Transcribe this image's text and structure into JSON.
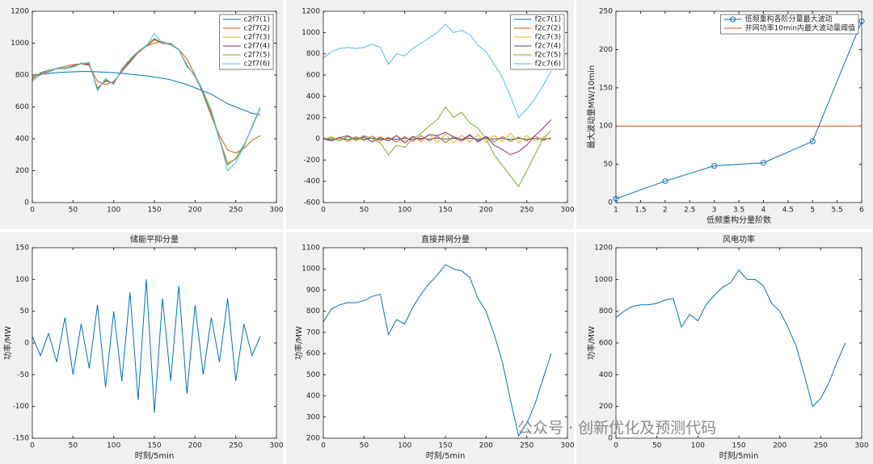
{
  "chart_data": [
    {
      "type": "line",
      "xlim": [
        0,
        300
      ],
      "ylim": [
        0,
        1200
      ],
      "xticks": [
        0,
        50,
        100,
        150,
        200,
        250,
        300
      ],
      "yticks": [
        0,
        200,
        400,
        600,
        800,
        1000,
        1200
      ],
      "legend": "northeast",
      "x": [
        0,
        10,
        20,
        30,
        40,
        50,
        60,
        70,
        80,
        90,
        100,
        110,
        120,
        130,
        140,
        150,
        160,
        170,
        180,
        190,
        200,
        210,
        220,
        230,
        240,
        250,
        260,
        270,
        280
      ],
      "series": [
        {
          "name": "c2f7(1)",
          "color": "#0072BD",
          "values": [
            800,
            805,
            810,
            815,
            818,
            820,
            822,
            822,
            820,
            818,
            815,
            810,
            805,
            800,
            795,
            788,
            780,
            770,
            755,
            740,
            720,
            700,
            680,
            650,
            620,
            600,
            580,
            560,
            550
          ]
        },
        {
          "name": "c2f7(2)",
          "color": "#D95319",
          "values": [
            790,
            800,
            820,
            840,
            855,
            865,
            870,
            860,
            760,
            740,
            760,
            820,
            880,
            940,
            980,
            1000,
            1010,
            990,
            960,
            900,
            800,
            680,
            540,
            420,
            330,
            310,
            340,
            390,
            420
          ]
        },
        {
          "name": "c2f7(3)",
          "color": "#EDB120",
          "values": [
            780,
            810,
            830,
            840,
            845,
            855,
            870,
            870,
            720,
            760,
            750,
            830,
            890,
            940,
            980,
            1020,
            1000,
            990,
            960,
            860,
            790,
            690,
            560,
            400,
            250,
            270,
            360,
            470,
            590
          ]
        },
        {
          "name": "c2f7(4)",
          "color": "#7E2F8E",
          "values": [
            775,
            812,
            828,
            842,
            843,
            857,
            872,
            868,
            715,
            765,
            748,
            833,
            888,
            945,
            982,
            1025,
            998,
            995,
            958,
            862,
            792,
            688,
            562,
            395,
            240,
            275,
            358,
            475,
            595
          ]
        },
        {
          "name": "c2f7(5)",
          "color": "#77AC30",
          "values": [
            770,
            815,
            832,
            838,
            846,
            852,
            875,
            872,
            710,
            770,
            745,
            836,
            892,
            948,
            985,
            1030,
            1002,
            992,
            962,
            858,
            795,
            692,
            558,
            392,
            235,
            278,
            362,
            472,
            598
          ]
        },
        {
          "name": "c2f7(6)",
          "color": "#4DBEEE",
          "values": [
            760,
            800,
            830,
            840,
            840,
            850,
            870,
            880,
            700,
            780,
            740,
            840,
            900,
            950,
            980,
            1060,
            1000,
            1000,
            960,
            850,
            800,
            700,
            580,
            400,
            200,
            250,
            350,
            480,
            600
          ]
        }
      ]
    },
    {
      "type": "line",
      "xlim": [
        0,
        300
      ],
      "ylim": [
        -600,
        1200
      ],
      "xticks": [
        0,
        50,
        100,
        150,
        200,
        250,
        300
      ],
      "yticks": [
        -600,
        -400,
        -200,
        0,
        200,
        400,
        600,
        800,
        1000,
        1200
      ],
      "legend": "northeast",
      "x": [
        0,
        10,
        20,
        30,
        40,
        50,
        60,
        70,
        80,
        90,
        100,
        110,
        120,
        130,
        140,
        150,
        160,
        170,
        180,
        190,
        200,
        210,
        220,
        230,
        240,
        250,
        260,
        270,
        280
      ],
      "series": [
        {
          "name": "f2c7(1)",
          "color": "#0072BD",
          "values": [
            5,
            -5,
            8,
            -6,
            4,
            -3,
            6,
            -4,
            3,
            -5,
            7,
            -6,
            5,
            -4,
            6,
            -3,
            4,
            -5,
            6,
            -4,
            5,
            -3,
            4,
            -6,
            5,
            -4,
            3,
            -5,
            4
          ]
        },
        {
          "name": "f2c7(2)",
          "color": "#D95319",
          "values": [
            10,
            -20,
            15,
            -25,
            20,
            -15,
            25,
            -20,
            15,
            -30,
            20,
            -25,
            30,
            -20,
            25,
            -35,
            20,
            -25,
            30,
            -20,
            25,
            -30,
            20,
            -25,
            15,
            -20,
            25,
            -15,
            10
          ]
        },
        {
          "name": "f2c7(3)",
          "color": "#EDB120",
          "values": [
            -10,
            20,
            -15,
            25,
            -20,
            15,
            -25,
            20,
            -15,
            30,
            -20,
            25,
            -30,
            40,
            -35,
            45,
            -40,
            35,
            -30,
            40,
            -35,
            30,
            -25,
            50,
            -40,
            30,
            -20,
            15,
            -10
          ]
        },
        {
          "name": "f2c7(4)",
          "color": "#7E2F8E",
          "values": [
            0,
            -20,
            10,
            30,
            -10,
            20,
            -30,
            10,
            -20,
            30,
            -40,
            20,
            -10,
            40,
            30,
            60,
            20,
            -10,
            40,
            -30,
            20,
            -60,
            -100,
            -150,
            -120,
            -60,
            30,
            100,
            180
          ]
        },
        {
          "name": "f2c7(5)",
          "color": "#77AC30",
          "values": [
            0,
            10,
            -20,
            20,
            -10,
            30,
            0,
            -40,
            -150,
            -60,
            -80,
            0,
            50,
            120,
            180,
            300,
            200,
            250,
            150,
            100,
            0,
            -150,
            -250,
            -350,
            -450,
            -300,
            -150,
            0,
            80
          ]
        },
        {
          "name": "f2c7(6)",
          "color": "#4DBEEE",
          "values": [
            760,
            820,
            850,
            860,
            850,
            860,
            890,
            860,
            700,
            800,
            780,
            850,
            900,
            950,
            1000,
            1080,
            1000,
            1020,
            980,
            880,
            820,
            700,
            580,
            400,
            200,
            280,
            380,
            500,
            640
          ]
        }
      ]
    },
    {
      "type": "line",
      "xlim": [
        1,
        6
      ],
      "ylim": [
        0,
        250
      ],
      "xticks": [
        1,
        1.5,
        2,
        2.5,
        3,
        3.5,
        4,
        4.5,
        5,
        5.5,
        6
      ],
      "yticks": [
        0,
        50,
        100,
        150,
        200,
        250
      ],
      "legend": "northeast",
      "xlabel": "低频重构分量阶数",
      "ylabel": "最大波动量MW/10min",
      "x": [
        1,
        2,
        3,
        4,
        5,
        6
      ],
      "series": [
        {
          "name": "低频重构各阶分量最大波动",
          "color": "#0072BD",
          "marker": "o",
          "values": [
            5,
            28,
            48,
            52,
            80,
            237
          ]
        },
        {
          "name": "并网功率10min内最大波动量阈值",
          "color": "#D95319",
          "values": [
            100,
            100,
            100,
            100,
            100,
            100
          ]
        }
      ]
    },
    {
      "type": "line",
      "title": "储能平抑分量",
      "xlabel": "时刻/5min",
      "ylabel": "功率/MW",
      "xlim": [
        0,
        300
      ],
      "ylim": [
        -150,
        150
      ],
      "xticks": [
        0,
        50,
        100,
        150,
        200,
        250,
        300
      ],
      "yticks": [
        -150,
        -100,
        -50,
        0,
        50,
        100,
        150
      ],
      "x": [
        0,
        10,
        20,
        30,
        40,
        50,
        60,
        70,
        80,
        90,
        100,
        110,
        120,
        130,
        140,
        150,
        160,
        170,
        180,
        190,
        200,
        210,
        220,
        230,
        240,
        250,
        260,
        270,
        280
      ],
      "series": [
        {
          "name": "储能平抑分量",
          "color": "#0072BD",
          "values": [
            10,
            -20,
            15,
            -30,
            40,
            -50,
            30,
            -40,
            60,
            -70,
            50,
            -60,
            80,
            -90,
            100,
            -110,
            70,
            -60,
            90,
            -80,
            60,
            -50,
            40,
            -30,
            70,
            -60,
            30,
            -20,
            10
          ]
        }
      ]
    },
    {
      "type": "line",
      "title": "直接并网分量",
      "xlabel": "时刻/5min",
      "ylabel": "功率/MW",
      "xlim": [
        0,
        300
      ],
      "ylim": [
        200,
        1100
      ],
      "xticks": [
        0,
        50,
        100,
        150,
        200,
        250,
        300
      ],
      "yticks": [
        200,
        300,
        400,
        500,
        600,
        700,
        800,
        900,
        1000,
        1100
      ],
      "x": [
        0,
        10,
        20,
        30,
        40,
        50,
        60,
        70,
        80,
        90,
        100,
        110,
        120,
        130,
        140,
        150,
        160,
        170,
        180,
        190,
        200,
        210,
        220,
        230,
        240,
        250,
        260,
        270,
        280
      ],
      "series": [
        {
          "name": "直接并网分量",
          "color": "#0072BD",
          "values": [
            750,
            810,
            830,
            840,
            840,
            850,
            870,
            880,
            690,
            760,
            740,
            820,
            880,
            930,
            970,
            1020,
            1000,
            990,
            960,
            860,
            800,
            690,
            560,
            380,
            210,
            270,
            360,
            480,
            600
          ]
        }
      ]
    },
    {
      "type": "line",
      "title": "风电功率",
      "xlabel": "时刻/5min",
      "ylabel": "功率/MW",
      "xlim": [
        0,
        300
      ],
      "ylim": [
        0,
        1200
      ],
      "xticks": [
        0,
        50,
        100,
        150,
        200,
        250,
        300
      ],
      "yticks": [
        0,
        200,
        400,
        600,
        800,
        1000,
        1200
      ],
      "x": [
        0,
        10,
        20,
        30,
        40,
        50,
        60,
        70,
        80,
        90,
        100,
        110,
        120,
        130,
        140,
        150,
        160,
        170,
        180,
        190,
        200,
        210,
        220,
        230,
        240,
        250,
        260,
        270,
        280
      ],
      "series": [
        {
          "name": "风电功率",
          "color": "#0072BD",
          "values": [
            760,
            800,
            830,
            840,
            840,
            850,
            870,
            880,
            700,
            780,
            740,
            840,
            900,
            950,
            980,
            1060,
            1000,
            1000,
            960,
            850,
            800,
            700,
            580,
            400,
            200,
            250,
            350,
            480,
            600
          ]
        }
      ]
    }
  ],
  "watermark": "公众号 · 创新优化及预测代码"
}
